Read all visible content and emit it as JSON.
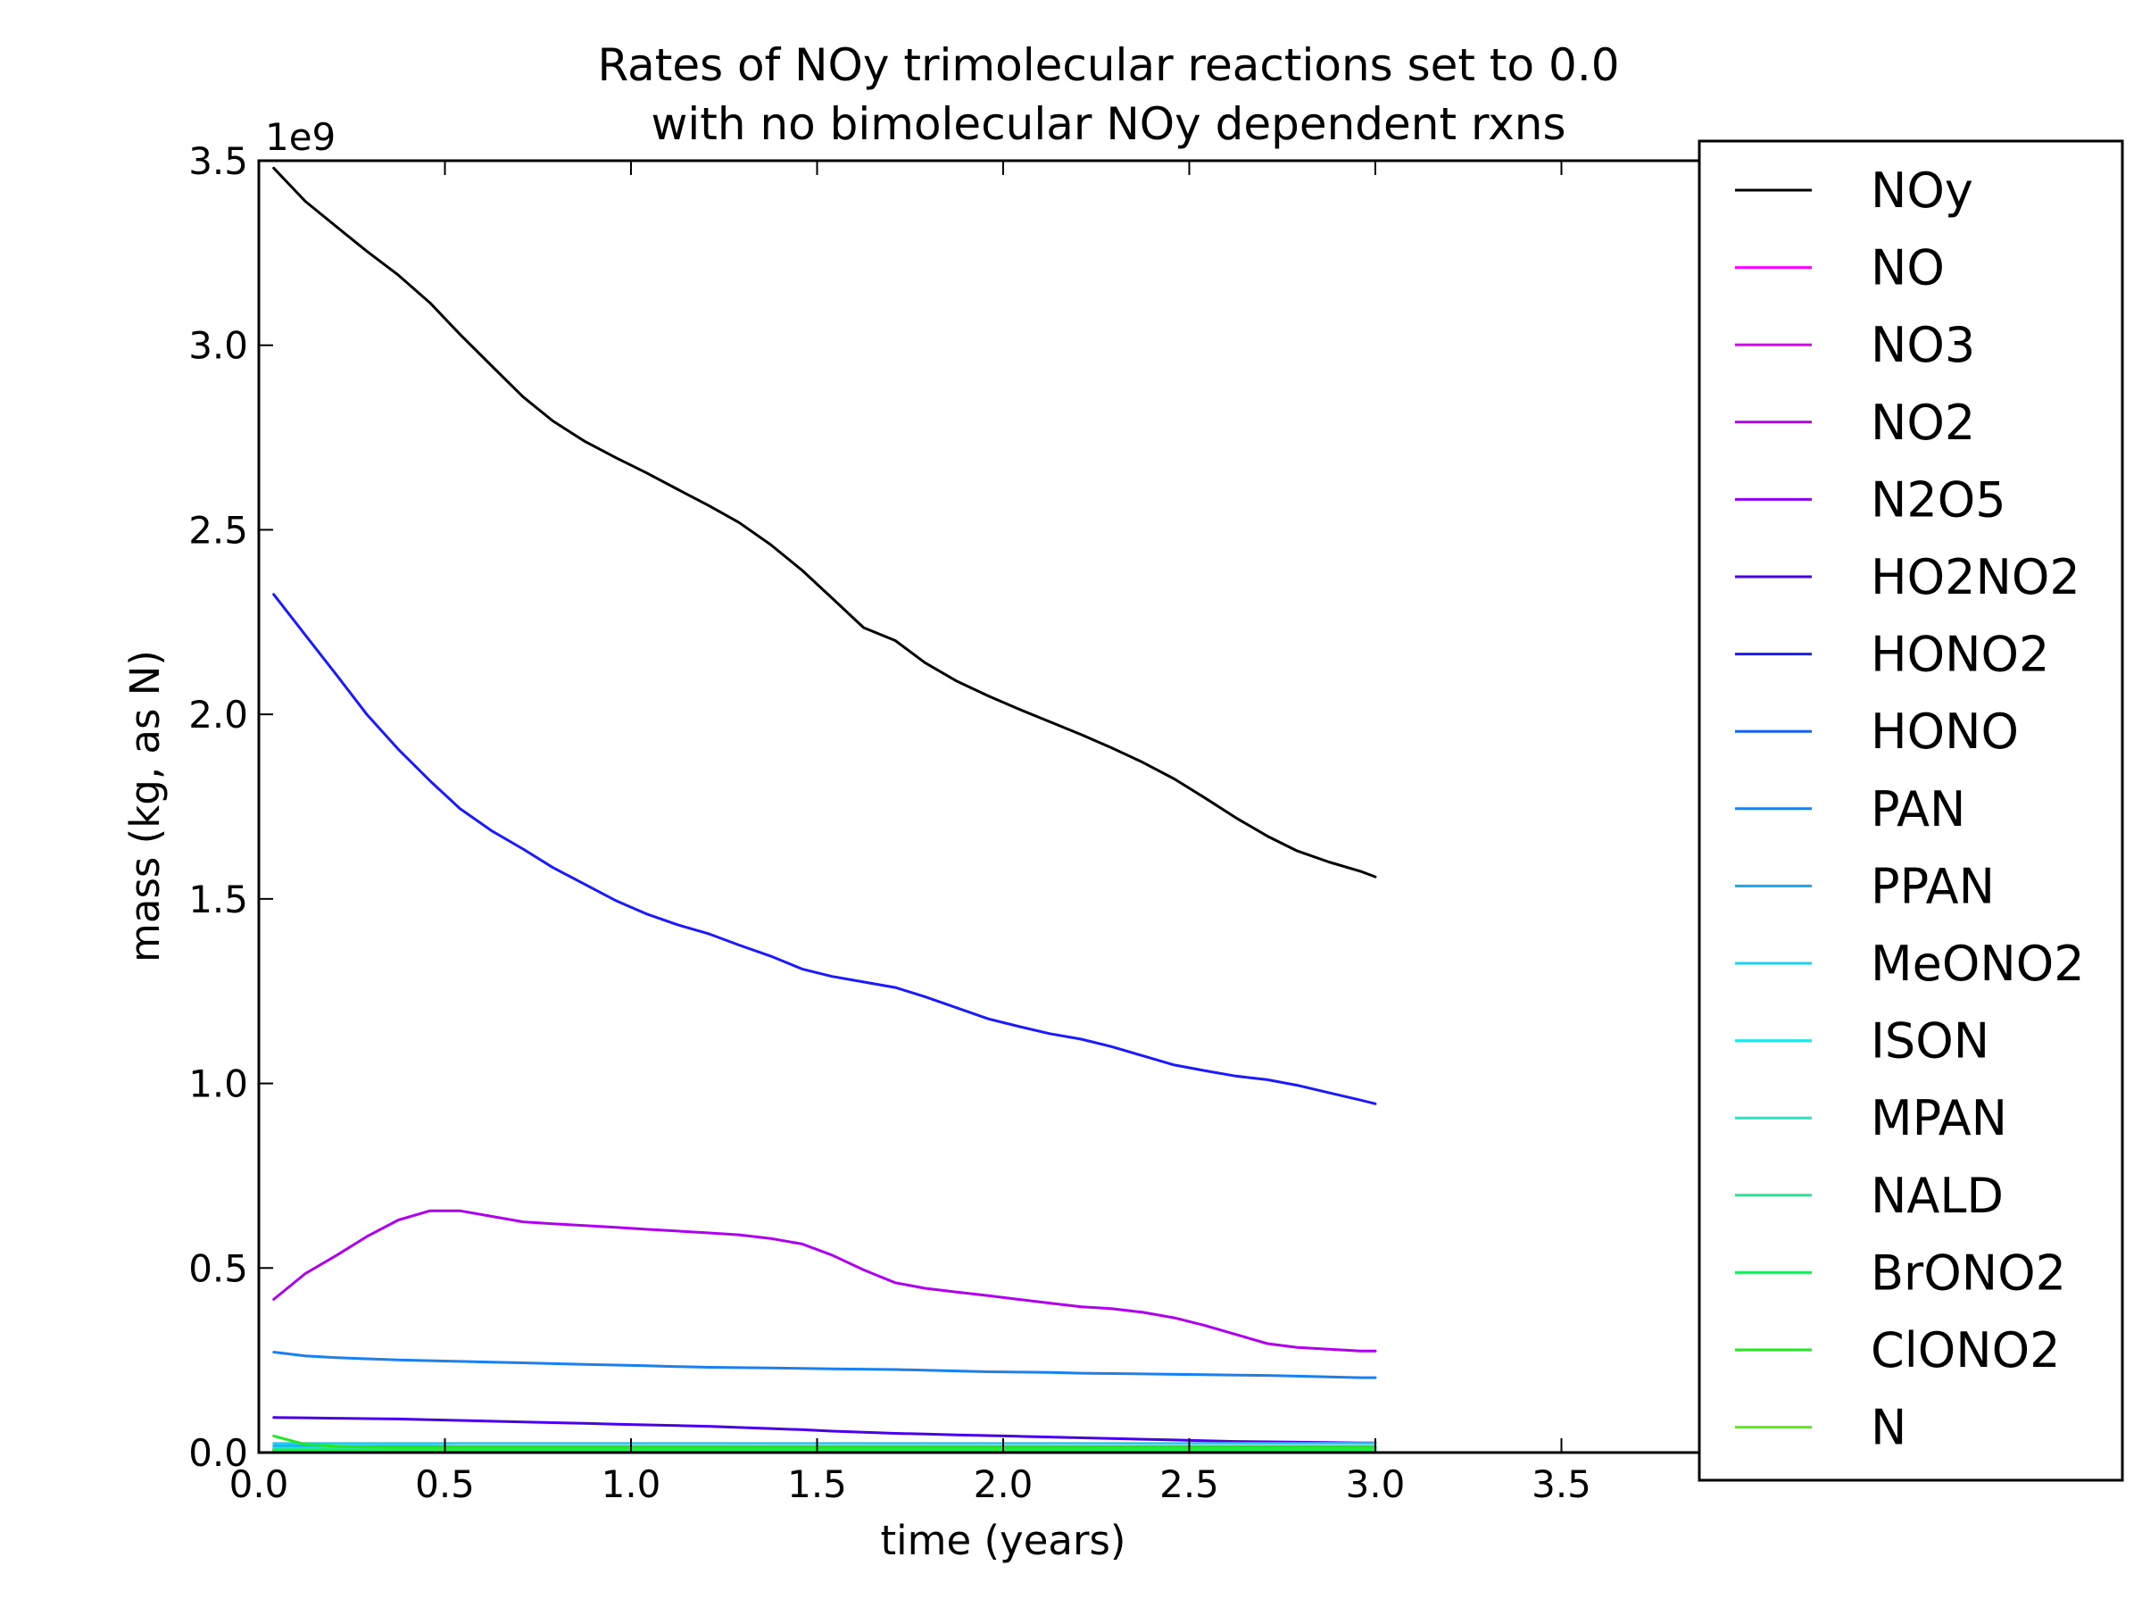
{
  "chart_data": {
    "type": "line",
    "title_lines": [
      "Rates of NOy trimolecular reactions set to 0.0",
      "with no bimolecular NOy dependent rxns"
    ],
    "xlabel": "time (years)",
    "ylabel": "mass (kg, as N)",
    "y_offset_label": "1e9",
    "xlim": [
      0.0,
      4.0
    ],
    "ylim": [
      0.0,
      3.5
    ],
    "y_scale_multiplier": 1000000000,
    "grid": false,
    "legend_position": "right",
    "x_ticks": [
      0.0,
      0.5,
      1.0,
      1.5,
      2.0,
      2.5,
      3.0,
      3.5
    ],
    "x_tick_labels": [
      "0.0",
      "0.5",
      "1.0",
      "1.5",
      "2.0",
      "2.5",
      "3.0",
      "3.5"
    ],
    "y_ticks": [
      0.0,
      0.5,
      1.0,
      1.5,
      2.0,
      2.5,
      3.0,
      3.5
    ],
    "y_tick_labels": [
      "0.0",
      "0.5",
      "1.0",
      "1.5",
      "2.0",
      "2.5",
      "3.0",
      "3.5"
    ],
    "x": [
      0.04,
      0.125,
      0.21,
      0.29,
      0.375,
      0.46,
      0.54,
      0.625,
      0.71,
      0.79,
      0.875,
      0.96,
      1.04,
      1.125,
      1.21,
      1.29,
      1.375,
      1.46,
      1.54,
      1.625,
      1.71,
      1.79,
      1.875,
      1.96,
      2.04,
      2.125,
      2.21,
      2.29,
      2.375,
      2.46,
      2.54,
      2.625,
      2.71,
      2.79,
      2.875,
      2.96,
      3.0
    ],
    "series": [
      {
        "name": "NOy",
        "color": "#000000",
        "values": [
          3.48,
          3.39,
          3.32,
          3.255,
          3.19,
          3.115,
          3.03,
          2.945,
          2.86,
          2.795,
          2.74,
          2.695,
          2.655,
          2.61,
          2.565,
          2.52,
          2.46,
          2.39,
          2.315,
          2.235,
          2.2,
          2.14,
          2.09,
          2.05,
          2.015,
          1.98,
          1.945,
          1.91,
          1.87,
          1.825,
          1.775,
          1.72,
          1.67,
          1.63,
          1.6,
          1.575,
          1.56
        ]
      },
      {
        "name": "NO",
        "color": "#ff00ff",
        "values": [
          0.006,
          0.006,
          0.006,
          0.006,
          0.006,
          0.006,
          0.006,
          0.006,
          0.006,
          0.006,
          0.006,
          0.006,
          0.006,
          0.006,
          0.006,
          0.006,
          0.006,
          0.006,
          0.006,
          0.006,
          0.006,
          0.006,
          0.006,
          0.006,
          0.006,
          0.006,
          0.006,
          0.006,
          0.006,
          0.006,
          0.006,
          0.006,
          0.006,
          0.006,
          0.006,
          0.006,
          0.006
        ]
      },
      {
        "name": "NO3",
        "color": "#e400ff",
        "values": [
          0.004,
          0.004,
          0.004,
          0.004,
          0.004,
          0.004,
          0.004,
          0.004,
          0.004,
          0.004,
          0.004,
          0.004,
          0.004,
          0.004,
          0.004,
          0.004,
          0.004,
          0.004,
          0.004,
          0.004,
          0.004,
          0.004,
          0.004,
          0.004,
          0.004,
          0.004,
          0.004,
          0.004,
          0.004,
          0.004,
          0.004,
          0.004,
          0.004,
          0.004,
          0.004,
          0.004,
          0.004
        ]
      },
      {
        "name": "NO2",
        "color": "#b000ef",
        "values": [
          0.415,
          0.485,
          0.535,
          0.585,
          0.63,
          0.655,
          0.655,
          0.64,
          0.625,
          0.62,
          0.615,
          0.61,
          0.605,
          0.6,
          0.595,
          0.59,
          0.58,
          0.565,
          0.535,
          0.495,
          0.46,
          0.445,
          0.435,
          0.425,
          0.415,
          0.405,
          0.395,
          0.39,
          0.38,
          0.365,
          0.345,
          0.32,
          0.295,
          0.285,
          0.28,
          0.275,
          0.275
        ]
      },
      {
        "name": "N2O5",
        "color": "#8b00ef",
        "values": [
          0.003,
          0.003,
          0.003,
          0.003,
          0.003,
          0.003,
          0.003,
          0.003,
          0.003,
          0.003,
          0.003,
          0.003,
          0.003,
          0.003,
          0.003,
          0.003,
          0.003,
          0.003,
          0.003,
          0.003,
          0.003,
          0.003,
          0.003,
          0.003,
          0.003,
          0.003,
          0.003,
          0.003,
          0.003,
          0.003,
          0.003,
          0.003,
          0.003,
          0.003,
          0.003,
          0.003,
          0.003
        ]
      },
      {
        "name": "HO2NO2",
        "color": "#4a00ea",
        "values": [
          0.095,
          0.094,
          0.093,
          0.092,
          0.091,
          0.089,
          0.087,
          0.085,
          0.083,
          0.081,
          0.079,
          0.077,
          0.075,
          0.073,
          0.071,
          0.068,
          0.065,
          0.062,
          0.058,
          0.055,
          0.052,
          0.05,
          0.048,
          0.046,
          0.044,
          0.042,
          0.04,
          0.038,
          0.036,
          0.034,
          0.032,
          0.03,
          0.029,
          0.028,
          0.027,
          0.026,
          0.026
        ]
      },
      {
        "name": "HONO2",
        "color": "#1a1aff",
        "values": [
          2.325,
          2.215,
          2.105,
          2.0,
          1.905,
          1.82,
          1.745,
          1.685,
          1.635,
          1.585,
          1.54,
          1.495,
          1.46,
          1.43,
          1.405,
          1.375,
          1.345,
          1.31,
          1.29,
          1.275,
          1.26,
          1.235,
          1.205,
          1.175,
          1.155,
          1.135,
          1.12,
          1.1,
          1.075,
          1.05,
          1.035,
          1.02,
          1.01,
          0.995,
          0.975,
          0.955,
          0.945
        ]
      },
      {
        "name": "HONO",
        "color": "#1660f0",
        "values": [
          0.002,
          0.002,
          0.002,
          0.002,
          0.002,
          0.002,
          0.002,
          0.002,
          0.002,
          0.002,
          0.002,
          0.002,
          0.002,
          0.002,
          0.002,
          0.002,
          0.002,
          0.002,
          0.002,
          0.002,
          0.002,
          0.002,
          0.002,
          0.002,
          0.002,
          0.002,
          0.002,
          0.002,
          0.002,
          0.002,
          0.002,
          0.002,
          0.002,
          0.002,
          0.002,
          0.002,
          0.002
        ]
      },
      {
        "name": "PAN",
        "color": "#1a80f0",
        "values": [
          0.272,
          0.262,
          0.257,
          0.254,
          0.251,
          0.249,
          0.247,
          0.245,
          0.243,
          0.241,
          0.239,
          0.237,
          0.235,
          0.233,
          0.231,
          0.23,
          0.229,
          0.228,
          0.227,
          0.226,
          0.225,
          0.223,
          0.221,
          0.219,
          0.218,
          0.217,
          0.215,
          0.214,
          0.213,
          0.212,
          0.211,
          0.21,
          0.209,
          0.207,
          0.205,
          0.203,
          0.203
        ]
      },
      {
        "name": "PPAN",
        "color": "#17a8f5",
        "values": [
          0.018,
          0.018,
          0.017,
          0.017,
          0.017,
          0.017,
          0.016,
          0.016,
          0.016,
          0.016,
          0.016,
          0.016,
          0.016,
          0.016,
          0.016,
          0.016,
          0.016,
          0.016,
          0.016,
          0.016,
          0.016,
          0.016,
          0.016,
          0.016,
          0.016,
          0.016,
          0.016,
          0.016,
          0.016,
          0.016,
          0.016,
          0.016,
          0.016,
          0.016,
          0.016,
          0.016,
          0.016
        ]
      },
      {
        "name": "MeONO2",
        "color": "#1dd2f0",
        "values": [
          0.025,
          0.025,
          0.025,
          0.025,
          0.025,
          0.025,
          0.025,
          0.025,
          0.025,
          0.025,
          0.025,
          0.025,
          0.025,
          0.025,
          0.025,
          0.025,
          0.025,
          0.025,
          0.025,
          0.025,
          0.025,
          0.025,
          0.025,
          0.025,
          0.025,
          0.025,
          0.025,
          0.025,
          0.025,
          0.025,
          0.025,
          0.025,
          0.025,
          0.025,
          0.025,
          0.025,
          0.025
        ]
      },
      {
        "name": "ISON",
        "color": "#1ee8e8",
        "values": [
          0.012,
          0.012,
          0.012,
          0.012,
          0.012,
          0.012,
          0.012,
          0.012,
          0.012,
          0.012,
          0.012,
          0.012,
          0.012,
          0.012,
          0.012,
          0.012,
          0.012,
          0.012,
          0.012,
          0.012,
          0.012,
          0.012,
          0.012,
          0.012,
          0.012,
          0.012,
          0.012,
          0.012,
          0.012,
          0.012,
          0.012,
          0.012,
          0.012,
          0.012,
          0.012,
          0.012,
          0.012
        ]
      },
      {
        "name": "MPAN",
        "color": "#1ee8c0",
        "values": [
          0.008,
          0.008,
          0.008,
          0.008,
          0.008,
          0.008,
          0.008,
          0.008,
          0.008,
          0.008,
          0.008,
          0.008,
          0.008,
          0.008,
          0.008,
          0.008,
          0.008,
          0.008,
          0.008,
          0.008,
          0.008,
          0.008,
          0.008,
          0.008,
          0.008,
          0.008,
          0.008,
          0.008,
          0.008,
          0.008,
          0.008,
          0.008,
          0.008,
          0.008,
          0.008,
          0.008,
          0.008
        ]
      },
      {
        "name": "NALD",
        "color": "#1ee890",
        "values": [
          0.01,
          0.01,
          0.01,
          0.01,
          0.01,
          0.01,
          0.01,
          0.01,
          0.01,
          0.01,
          0.01,
          0.01,
          0.01,
          0.01,
          0.01,
          0.01,
          0.01,
          0.01,
          0.01,
          0.01,
          0.01,
          0.01,
          0.01,
          0.01,
          0.01,
          0.01,
          0.01,
          0.01,
          0.01,
          0.01,
          0.01,
          0.01,
          0.01,
          0.01,
          0.01,
          0.01,
          0.01
        ]
      },
      {
        "name": "BrONO2",
        "color": "#1ee860",
        "values": [
          0.005,
          0.005,
          0.005,
          0.005,
          0.005,
          0.005,
          0.005,
          0.005,
          0.005,
          0.005,
          0.005,
          0.005,
          0.005,
          0.005,
          0.005,
          0.005,
          0.005,
          0.005,
          0.005,
          0.005,
          0.005,
          0.005,
          0.005,
          0.005,
          0.005,
          0.005,
          0.005,
          0.005,
          0.005,
          0.005,
          0.005,
          0.005,
          0.005,
          0.005,
          0.005,
          0.005,
          0.005
        ]
      },
      {
        "name": "ClONO2",
        "color": "#22e822",
        "values": [
          0.045,
          0.022,
          0.017,
          0.015,
          0.014,
          0.014,
          0.014,
          0.014,
          0.014,
          0.014,
          0.014,
          0.014,
          0.014,
          0.014,
          0.014,
          0.014,
          0.014,
          0.014,
          0.014,
          0.014,
          0.014,
          0.014,
          0.014,
          0.014,
          0.014,
          0.014,
          0.014,
          0.014,
          0.014,
          0.014,
          0.014,
          0.014,
          0.014,
          0.014,
          0.014,
          0.014,
          0.014
        ]
      },
      {
        "name": "N",
        "color": "#55ee11",
        "values": [
          0.002,
          0.002,
          0.002,
          0.002,
          0.002,
          0.002,
          0.002,
          0.002,
          0.002,
          0.002,
          0.002,
          0.002,
          0.002,
          0.002,
          0.002,
          0.002,
          0.002,
          0.002,
          0.002,
          0.002,
          0.002,
          0.002,
          0.002,
          0.002,
          0.002,
          0.002,
          0.002,
          0.002,
          0.002,
          0.002,
          0.002,
          0.002,
          0.002,
          0.002,
          0.002,
          0.002,
          0.002
        ]
      }
    ]
  }
}
